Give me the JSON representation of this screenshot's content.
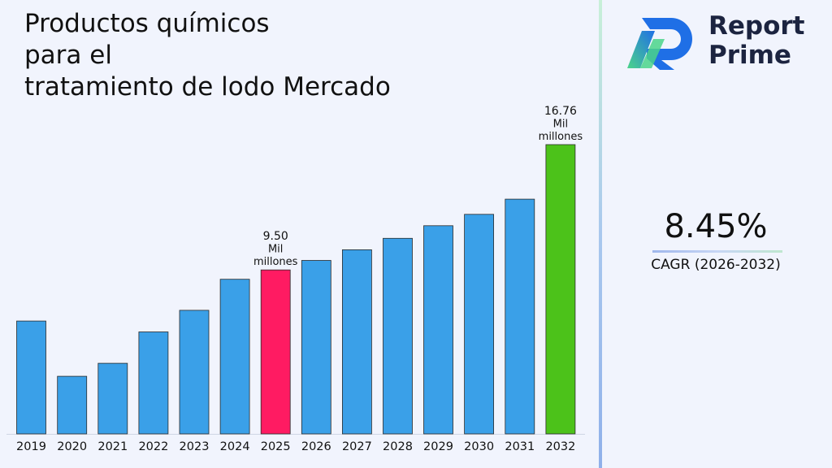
{
  "brand": {
    "name_line1": "Report",
    "name_line2": "Prime",
    "colors": {
      "logo_blue": "#1f6fe6",
      "logo_green": "#4bd48a",
      "text": "#1c2440"
    }
  },
  "kpi": {
    "cagr_value": "8.45%",
    "cagr_label": "CAGR (2026-2032)"
  },
  "chart_data": {
    "type": "bar",
    "title_lines": [
      "Productos químicos",
      "para el",
      "tratamiento de lodo Mercado"
    ],
    "xlabel": "",
    "ylabel": "",
    "ylim": [
      0,
      16.76
    ],
    "grid": false,
    "legend": "none",
    "categories": [
      "2019",
      "2020",
      "2021",
      "2022",
      "2023",
      "2024",
      "2025",
      "2026",
      "2027",
      "2028",
      "2029",
      "2030",
      "2031",
      "2032"
    ],
    "values": [
      6.54,
      3.34,
      4.09,
      5.91,
      7.16,
      8.96,
      9.5,
      10.05,
      10.67,
      11.33,
      12.06,
      12.72,
      13.6,
      16.76
    ],
    "colors": {
      "default": "#3aa0e8",
      "highlight_start": "#ff1b62",
      "highlight_end": "#4cc21a"
    },
    "annotations": [
      {
        "category": "2025",
        "value_text": "9.50",
        "unit_line1": "Mil",
        "unit_line2": "millones"
      },
      {
        "category": "2032",
        "value_text": "16.76",
        "unit_line1": "Mil",
        "unit_line2": "millones"
      }
    ]
  }
}
